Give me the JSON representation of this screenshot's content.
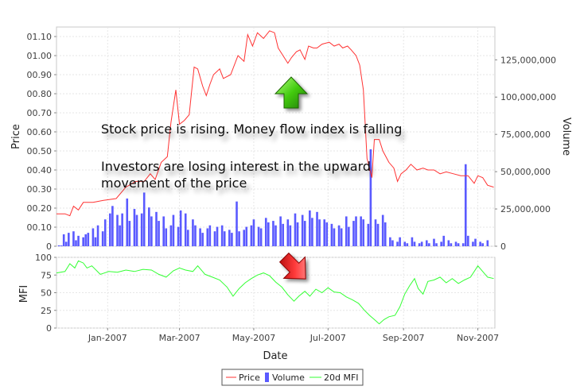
{
  "chart_data": [
    {
      "type": "line+bar",
      "xlabel": "Date",
      "ylabel": "Price",
      "y2label": "Volume",
      "price_ylim": [
        0,
        1.15
      ],
      "price_ticks": [
        "0",
        "00.10",
        "00.20",
        "00.30",
        "00.40",
        "00.50",
        "00.60",
        "00.70",
        "00.80",
        "00.90",
        "01.00",
        "01.10"
      ],
      "volume_ylim": [
        0,
        147000000
      ],
      "volume_ticks": [
        "0",
        "25,000,000",
        "50,000,000",
        "75,000,000",
        "100,000,000",
        "125,000,000"
      ],
      "x_ticks": [
        "Jan-2007",
        "Mar-2007",
        "May-2007",
        "Jul-2007",
        "Sep-2007",
        "Nov-2007"
      ],
      "x_tick_dates": [
        "2007-01-01",
        "2007-03-01",
        "2007-05-01",
        "2007-07-01",
        "2007-09-01",
        "2007-11-01"
      ],
      "x_range": [
        "2006-11-20",
        "2007-11-15"
      ],
      "grid": true,
      "series": [
        {
          "name": "Price",
          "color": "#ff3333",
          "points": [
            [
              "2006-11-20",
              0.17
            ],
            [
              "2006-11-27",
              0.17
            ],
            [
              "2006-12-01",
              0.16
            ],
            [
              "2006-12-04",
              0.21
            ],
            [
              "2006-12-08",
              0.19
            ],
            [
              "2006-12-12",
              0.23
            ],
            [
              "2006-12-20",
              0.23
            ],
            [
              "2006-12-28",
              0.24
            ],
            [
              "2007-01-08",
              0.25
            ],
            [
              "2007-01-16",
              0.31
            ],
            [
              "2007-01-24",
              0.34
            ],
            [
              "2007-01-31",
              0.34
            ],
            [
              "2007-02-05",
              0.38
            ],
            [
              "2007-02-09",
              0.35
            ],
            [
              "2007-02-14",
              0.44
            ],
            [
              "2007-02-19",
              0.47
            ],
            [
              "2007-02-22",
              0.65
            ],
            [
              "2007-02-26",
              0.82
            ],
            [
              "2007-03-01",
              0.64
            ],
            [
              "2007-03-05",
              0.66
            ],
            [
              "2007-03-09",
              0.69
            ],
            [
              "2007-03-13",
              0.94
            ],
            [
              "2007-03-16",
              0.93
            ],
            [
              "2007-03-20",
              0.84
            ],
            [
              "2007-03-23",
              0.79
            ],
            [
              "2007-03-26",
              0.85
            ],
            [
              "2007-03-29",
              0.9
            ],
            [
              "2007-04-03",
              0.93
            ],
            [
              "2007-04-06",
              0.88
            ],
            [
              "2007-04-12",
              0.9
            ],
            [
              "2007-04-18",
              1.0
            ],
            [
              "2007-04-23",
              0.97
            ],
            [
              "2007-04-26",
              1.11
            ],
            [
              "2007-04-30",
              1.05
            ],
            [
              "2007-05-04",
              1.12
            ],
            [
              "2007-05-09",
              1.09
            ],
            [
              "2007-05-14",
              1.13
            ],
            [
              "2007-05-18",
              1.12
            ],
            [
              "2007-05-21",
              1.04
            ],
            [
              "2007-05-25",
              1.0
            ],
            [
              "2007-05-29",
              0.96
            ],
            [
              "2007-06-01",
              0.99
            ],
            [
              "2007-06-05",
              1.02
            ],
            [
              "2007-06-08",
              1.03
            ],
            [
              "2007-06-12",
              0.98
            ],
            [
              "2007-06-15",
              1.05
            ],
            [
              "2007-06-19",
              1.04
            ],
            [
              "2007-06-22",
              1.04
            ],
            [
              "2007-06-26",
              1.06
            ],
            [
              "2007-07-02",
              1.07
            ],
            [
              "2007-07-06",
              1.05
            ],
            [
              "2007-07-10",
              1.06
            ],
            [
              "2007-07-13",
              1.04
            ],
            [
              "2007-07-17",
              1.05
            ],
            [
              "2007-07-20",
              1.03
            ],
            [
              "2007-07-24",
              1.0
            ],
            [
              "2007-07-27",
              0.95
            ],
            [
              "2007-07-30",
              0.82
            ],
            [
              "2007-08-02",
              0.46
            ],
            [
              "2007-08-06",
              0.36
            ],
            [
              "2007-08-08",
              0.56
            ],
            [
              "2007-08-12",
              0.56
            ],
            [
              "2007-08-15",
              0.5
            ],
            [
              "2007-08-20",
              0.44
            ],
            [
              "2007-08-24",
              0.41
            ],
            [
              "2007-08-27",
              0.34
            ],
            [
              "2007-08-30",
              0.38
            ],
            [
              "2007-09-03",
              0.4
            ],
            [
              "2007-09-07",
              0.43
            ],
            [
              "2007-09-12",
              0.4
            ],
            [
              "2007-09-17",
              0.41
            ],
            [
              "2007-09-21",
              0.4
            ],
            [
              "2007-09-26",
              0.4
            ],
            [
              "2007-10-01",
              0.38
            ],
            [
              "2007-10-06",
              0.39
            ],
            [
              "2007-10-12",
              0.38
            ],
            [
              "2007-10-18",
              0.37
            ],
            [
              "2007-10-24",
              0.37
            ],
            [
              "2007-10-29",
              0.33
            ],
            [
              "2007-11-01",
              0.37
            ],
            [
              "2007-11-05",
              0.36
            ],
            [
              "2007-11-09",
              0.32
            ],
            [
              "2007-11-14",
              0.31
            ]
          ]
        },
        {
          "name": "Volume",
          "color": "#5a5aff",
          "bar_dates_range": [
            "2006-11-20",
            "2007-11-15"
          ],
          "bar_spacing_days": 2,
          "bar_values": [
            0,
            600000,
            500000,
            8000000,
            3000000,
            9000000,
            0,
            10000000,
            4000000,
            7000000,
            0,
            6000000,
            8000000,
            9000000,
            0,
            12000000,
            6000000,
            14000000,
            0,
            10000000,
            18000000,
            0,
            22000000,
            27000000,
            0,
            21000000,
            14000000,
            22000000,
            0,
            32000000,
            17000000,
            0,
            25000000,
            21000000,
            0,
            22000000,
            36000000,
            0,
            26000000,
            20000000,
            0,
            23000000,
            17000000,
            0,
            20000000,
            12000000,
            0,
            14000000,
            21000000,
            0,
            13000000,
            24000000,
            0,
            22000000,
            11000000,
            0,
            18000000,
            14000000,
            0,
            12000000,
            9000000,
            0,
            12000000,
            14000000,
            0,
            10000000,
            13000000,
            0,
            14000000,
            10000000,
            0,
            11000000,
            9000000,
            0,
            30000000,
            10000000,
            0,
            11000000,
            13000000,
            0,
            14000000,
            18000000,
            0,
            13000000,
            12000000,
            0,
            19000000,
            16000000,
            0,
            17000000,
            14000000,
            0,
            20000000,
            15000000,
            0,
            18000000,
            14000000,
            0,
            22000000,
            16000000,
            0,
            21000000,
            17000000,
            0,
            24000000,
            19000000,
            0,
            23000000,
            18000000,
            0,
            18000000,
            16000000,
            0,
            15000000,
            12000000,
            0,
            14000000,
            12000000,
            0,
            20000000,
            13000000,
            0,
            17000000,
            20000000,
            0,
            20000000,
            18000000,
            0,
            15000000,
            65000000,
            0,
            18000000,
            15000000,
            0,
            21000000,
            16000000,
            0,
            6000000,
            4000000,
            0,
            3000000,
            6000000,
            0,
            3000000,
            2000000,
            0,
            6000000,
            3000000,
            0,
            2000000,
            3000000,
            0,
            4000000,
            2000000,
            0,
            5000000,
            2000000,
            0,
            3000000,
            7000000,
            0,
            4000000,
            2000000,
            0,
            3000000,
            2000000,
            0,
            2000000,
            55000000,
            7000000,
            0,
            3000000,
            5000000,
            0,
            3000000,
            2000000,
            0,
            4000000
          ]
        }
      ]
    },
    {
      "type": "line",
      "ylabel": "MFI",
      "ylim": [
        0,
        100
      ],
      "y_ticks": [
        "0",
        "25",
        "50",
        "75",
        "100"
      ],
      "series": [
        {
          "name": "20d MFI",
          "color": "#33ff33",
          "points": [
            [
              "2006-11-20",
              78
            ],
            [
              "2006-11-27",
              80
            ],
            [
              "2006-12-01",
              91
            ],
            [
              "2006-12-05",
              85
            ],
            [
              "2006-12-08",
              95
            ],
            [
              "2006-12-12",
              92
            ],
            [
              "2006-12-15",
              85
            ],
            [
              "2006-12-19",
              88
            ],
            [
              "2006-12-26",
              76
            ],
            [
              "2007-01-02",
              80
            ],
            [
              "2007-01-09",
              79
            ],
            [
              "2007-01-16",
              82
            ],
            [
              "2007-01-23",
              80
            ],
            [
              "2007-01-30",
              83
            ],
            [
              "2007-02-06",
              82
            ],
            [
              "2007-02-12",
              76
            ],
            [
              "2007-02-18",
              72
            ],
            [
              "2007-02-24",
              81
            ],
            [
              "2007-03-01",
              85
            ],
            [
              "2007-03-06",
              82
            ],
            [
              "2007-03-12",
              80
            ],
            [
              "2007-03-16",
              88
            ],
            [
              "2007-03-22",
              76
            ],
            [
              "2007-03-28",
              72
            ],
            [
              "2007-04-03",
              68
            ],
            [
              "2007-04-09",
              58
            ],
            [
              "2007-04-14",
              45
            ],
            [
              "2007-04-19",
              56
            ],
            [
              "2007-04-24",
              64
            ],
            [
              "2007-04-29",
              70
            ],
            [
              "2007-05-04",
              75
            ],
            [
              "2007-05-09",
              78
            ],
            [
              "2007-05-14",
              74
            ],
            [
              "2007-05-19",
              65
            ],
            [
              "2007-05-24",
              58
            ],
            [
              "2007-05-29",
              47
            ],
            [
              "2007-06-03",
              38
            ],
            [
              "2007-06-07",
              45
            ],
            [
              "2007-06-12",
              52
            ],
            [
              "2007-06-16",
              45
            ],
            [
              "2007-06-21",
              55
            ],
            [
              "2007-06-26",
              50
            ],
            [
              "2007-07-01",
              57
            ],
            [
              "2007-07-06",
              51
            ],
            [
              "2007-07-11",
              50
            ],
            [
              "2007-07-16",
              44
            ],
            [
              "2007-07-21",
              40
            ],
            [
              "2007-07-26",
              35
            ],
            [
              "2007-07-31",
              25
            ],
            [
              "2007-08-04",
              18
            ],
            [
              "2007-08-08",
              12
            ],
            [
              "2007-08-12",
              6
            ],
            [
              "2007-08-16",
              12
            ],
            [
              "2007-08-20",
              16
            ],
            [
              "2007-08-25",
              18
            ],
            [
              "2007-08-29",
              30
            ],
            [
              "2007-09-02",
              48
            ],
            [
              "2007-09-06",
              60
            ],
            [
              "2007-09-10",
              70
            ],
            [
              "2007-09-13",
              56
            ],
            [
              "2007-09-17",
              48
            ],
            [
              "2007-09-21",
              66
            ],
            [
              "2007-09-26",
              68
            ],
            [
              "2007-10-01",
              72
            ],
            [
              "2007-10-06",
              64
            ],
            [
              "2007-10-11",
              70
            ],
            [
              "2007-10-16",
              63
            ],
            [
              "2007-10-21",
              68
            ],
            [
              "2007-10-26",
              72
            ],
            [
              "2007-11-01",
              88
            ],
            [
              "2007-11-05",
              80
            ],
            [
              "2007-11-09",
              72
            ],
            [
              "2007-11-14",
              70
            ]
          ]
        }
      ]
    }
  ],
  "annotations": {
    "line1": "Stock price is rising. Money flow index is falling",
    "line2": "Investors are losing interest in the upward",
    "line3": "movement of the price"
  },
  "arrows": {
    "up_color": "#33cc00",
    "down_color": "#ee2222"
  },
  "legend": [
    {
      "label": "Price",
      "color": "#ff3333",
      "kind": "line"
    },
    {
      "label": "Volume",
      "color": "#5a5aff",
      "kind": "bar"
    },
    {
      "label": "20d MFI",
      "color": "#33ff33",
      "kind": "line"
    }
  ]
}
